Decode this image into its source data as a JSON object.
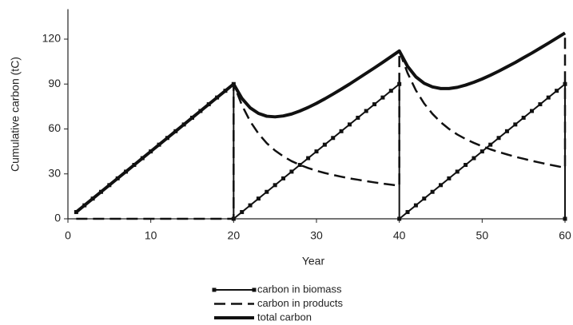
{
  "chart_data": {
    "type": "line",
    "x_label": "Year",
    "y_label": "Cumulative carbon (tC)",
    "xlim": [
      0,
      60
    ],
    "xticks": [
      0,
      10,
      20,
      30,
      40,
      50,
      60
    ],
    "ylim": [
      0,
      140
    ],
    "yticks": [
      0,
      30,
      60,
      90,
      120
    ],
    "grid": false,
    "legend": "bottom",
    "x": [
      1,
      2,
      3,
      4,
      5,
      6,
      7,
      8,
      9,
      10,
      11,
      12,
      13,
      14,
      15,
      16,
      17,
      18,
      19,
      20,
      20,
      21,
      22,
      23,
      24,
      25,
      26,
      27,
      28,
      29,
      30,
      31,
      32,
      33,
      34,
      35,
      36,
      37,
      38,
      39,
      40,
      40,
      41,
      42,
      43,
      44,
      45,
      46,
      47,
      48,
      49,
      50,
      51,
      52,
      53,
      54,
      55,
      56,
      57,
      58,
      59,
      60,
      60
    ],
    "series": [
      {
        "name": "carbon in biomass",
        "color": "#111111",
        "line_style": "solid",
        "line_width": 2,
        "marker": "square",
        "values": [
          4.5,
          9,
          13.5,
          18,
          22.5,
          27,
          31.5,
          36,
          40.5,
          45,
          49.5,
          54,
          58.5,
          63,
          67.5,
          72,
          76.5,
          81,
          85.5,
          90,
          0,
          4.5,
          9,
          13.5,
          18,
          22.5,
          27,
          31.5,
          36,
          40.5,
          45,
          49.5,
          54,
          58.5,
          63,
          67.5,
          72,
          76.5,
          81,
          85.5,
          90,
          0,
          4.5,
          9,
          13.5,
          18,
          22.5,
          27,
          31.5,
          36,
          40.5,
          45,
          49.5,
          54,
          58.5,
          63,
          67.5,
          72,
          76.5,
          81,
          85.5,
          90,
          0
        ]
      },
      {
        "name": "carbon in products",
        "color": "#111111",
        "line_style": "dashed",
        "line_width": 2.5,
        "marker": null,
        "values": [
          0,
          0,
          0,
          0,
          0,
          0,
          0,
          0,
          0,
          0,
          0,
          0,
          0,
          0,
          0,
          0,
          0,
          0,
          0,
          0,
          90,
          75.9,
          65.1,
          56.9,
          50.5,
          45.6,
          41.7,
          38.5,
          36.0,
          33.9,
          32.1,
          30.6,
          29.3,
          28.1,
          27.0,
          26.1,
          25.2,
          24.3,
          23.5,
          22.8,
          22.1,
          112.1,
          97.3,
          85.8,
          77.0,
          70.1,
          64.5,
          60.0,
          56.3,
          53.3,
          50.7,
          48.4,
          46.4,
          44.6,
          43.0,
          41.4,
          40.1,
          38.7,
          37.5,
          36.3,
          35.2,
          34.1,
          124.1
        ]
      },
      {
        "name": "total carbon",
        "color": "#111111",
        "line_style": "solid",
        "line_width": 4,
        "marker": null,
        "values": [
          4.5,
          9,
          13.5,
          18,
          22.5,
          27,
          31.5,
          36,
          40.5,
          45,
          49.5,
          54,
          58.5,
          63,
          67.5,
          72,
          76.5,
          81,
          85.5,
          90,
          90,
          80.4,
          74.1,
          70.4,
          68.5,
          68.1,
          68.7,
          70.0,
          72.0,
          74.4,
          77.1,
          80.1,
          83.3,
          86.6,
          90.0,
          93.6,
          97.2,
          100.8,
          104.5,
          108.3,
          112.1,
          112.1,
          101.8,
          94.8,
          90.5,
          88.1,
          87.0,
          87.0,
          87.8,
          89.3,
          91.2,
          93.4,
          95.9,
          98.6,
          101.5,
          104.4,
          107.6,
          110.7,
          114.0,
          117.3,
          120.7,
          124.1,
          124.1
        ]
      }
    ]
  }
}
